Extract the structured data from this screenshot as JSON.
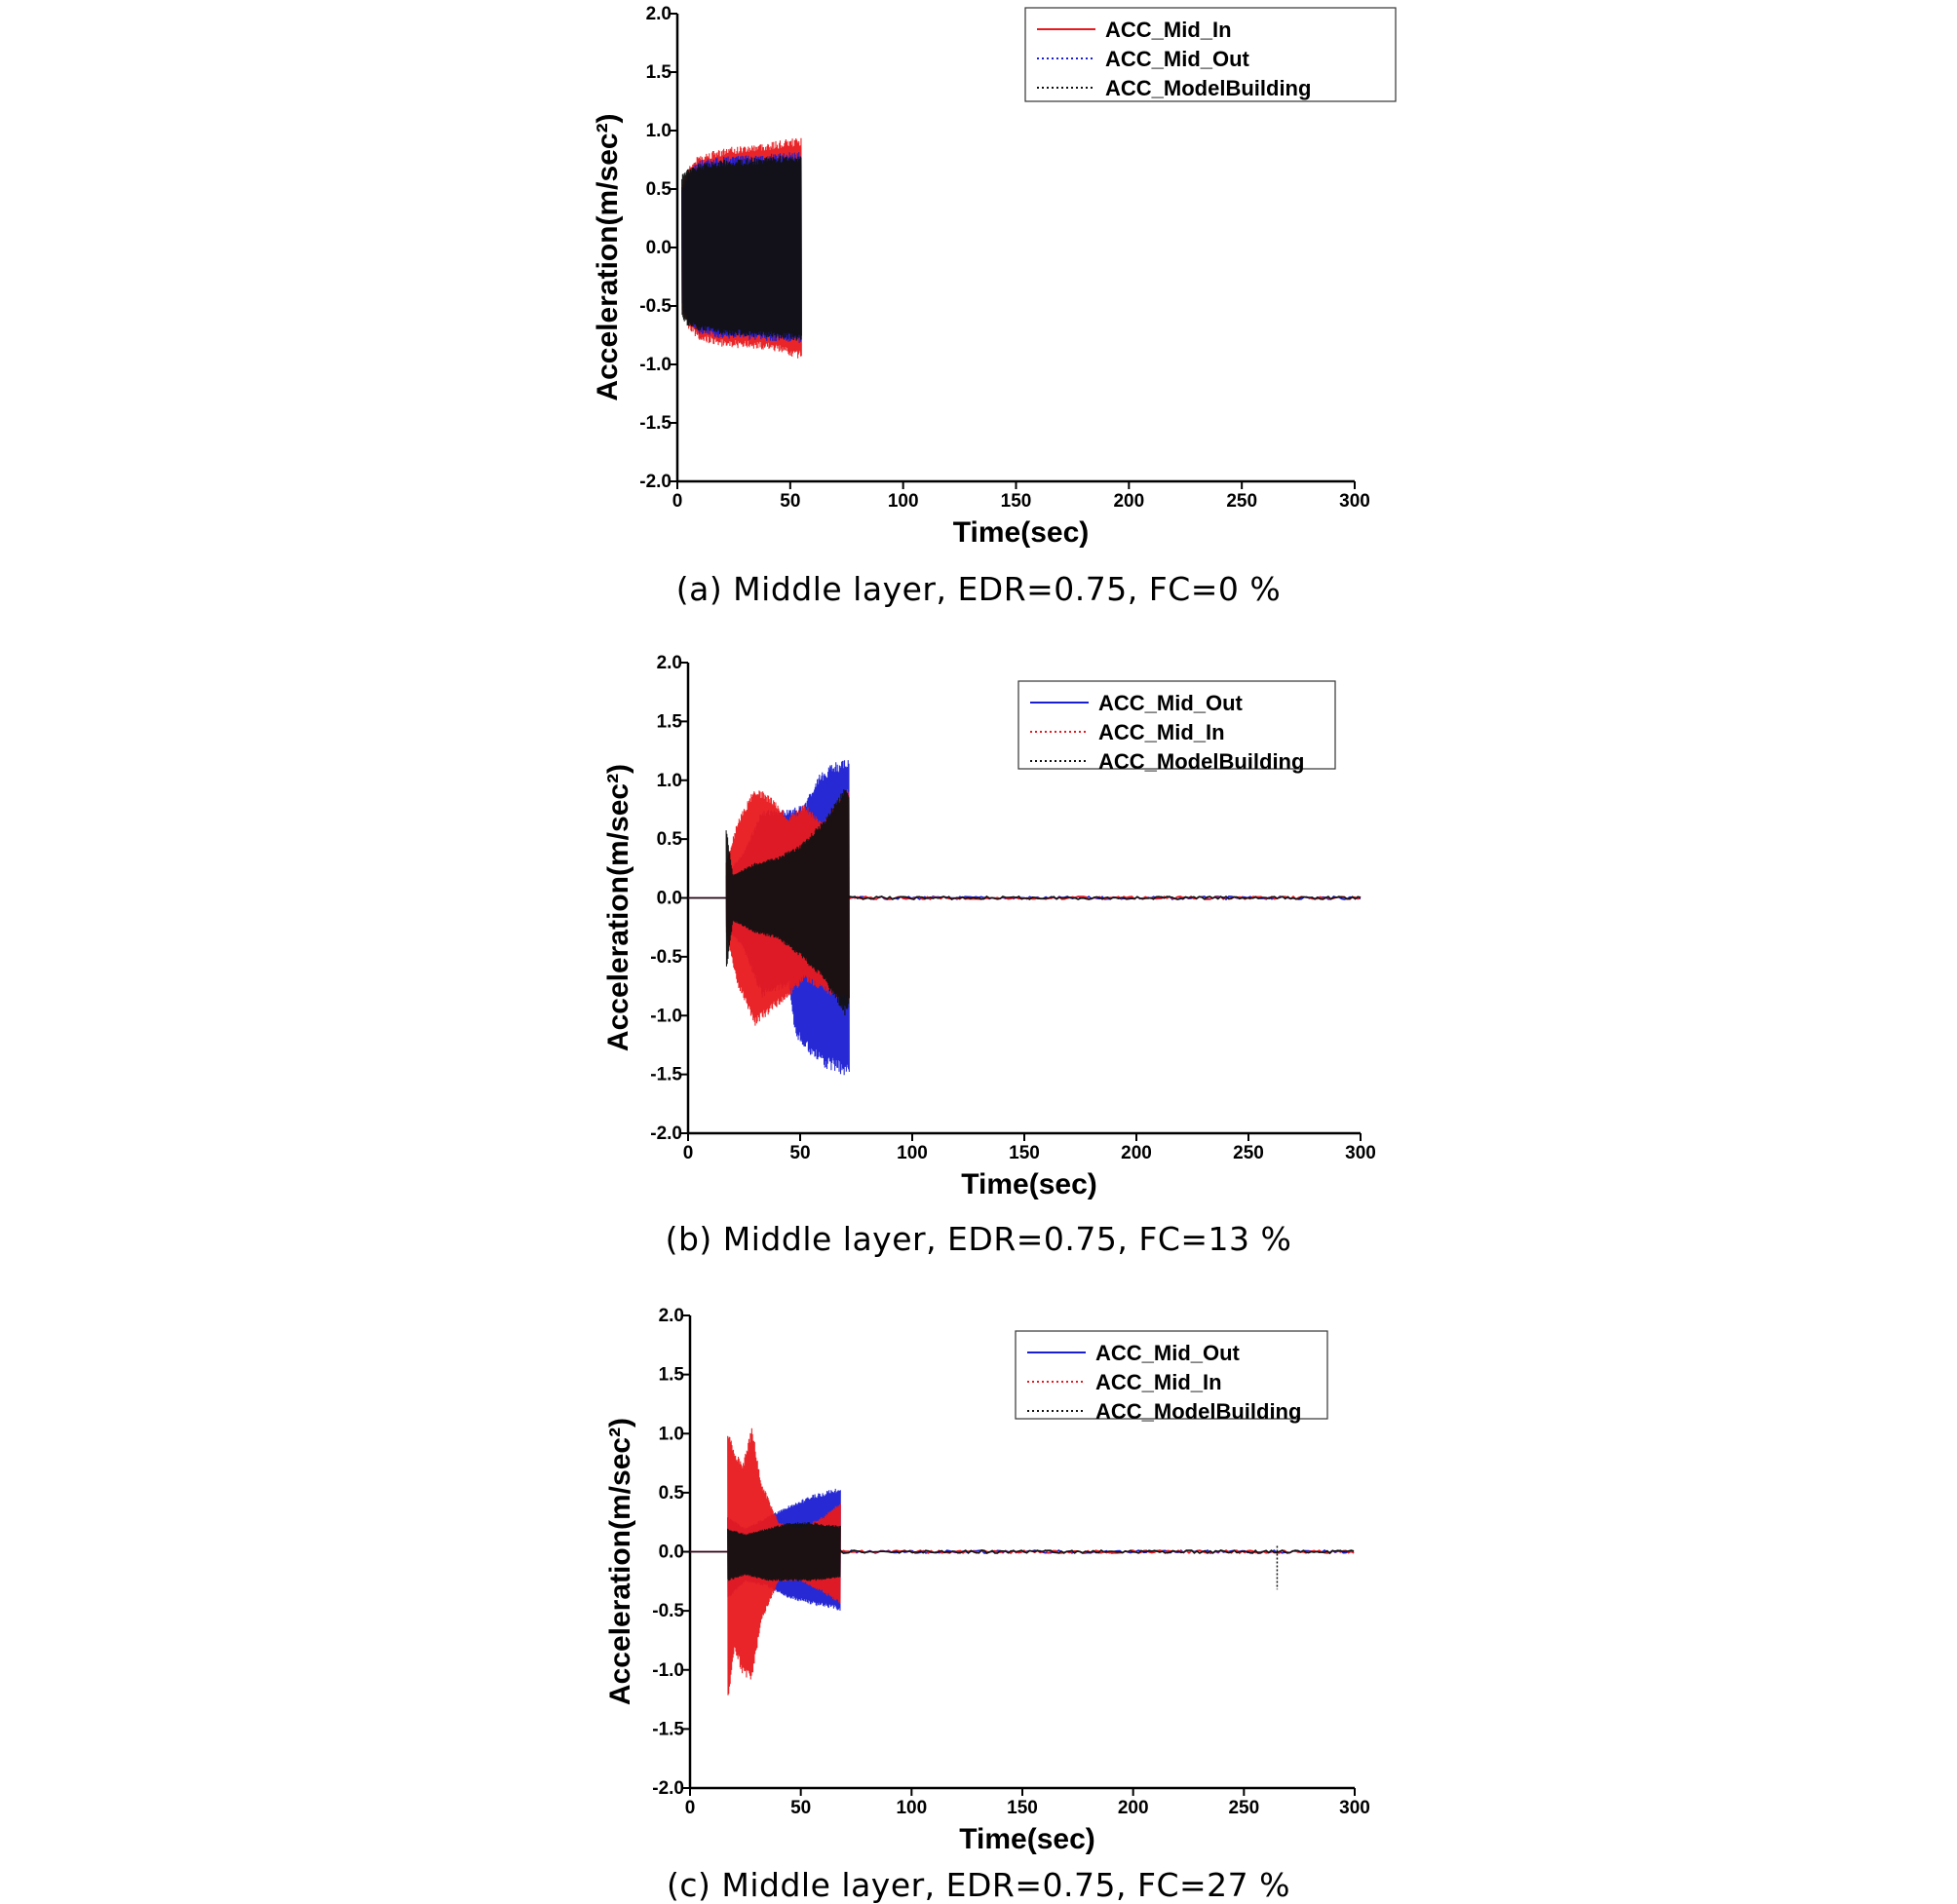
{
  "chart_data": [
    {
      "type": "line",
      "caption": "(a) Middle layer, EDR=0.75, FC=0 %",
      "xlabel": "Time(sec)",
      "ylabel": "Acceleration(m/sec²)",
      "xlim": [
        0,
        300
      ],
      "ylim": [
        -2.0,
        2.0
      ],
      "xticks": [
        "0",
        "50",
        "100",
        "150",
        "200",
        "250",
        "300"
      ],
      "yticks": [
        "2.0",
        "1.5",
        "1.0",
        "0.5",
        "0.0",
        "-0.5",
        "-1.0",
        "-1.5",
        "-2.0"
      ],
      "legend_position": "top-right",
      "series": [
        {
          "name": "ACC_Mid_In",
          "color": "#e8191e",
          "line": "solid",
          "envelope": [
            [
              2,
              0.55
            ],
            [
              5,
              0.7
            ],
            [
              10,
              0.8
            ],
            [
              20,
              0.85
            ],
            [
              40,
              0.9
            ],
            [
              53,
              0.94
            ]
          ],
          "envelope_low": [
            [
              2,
              -0.55
            ],
            [
              5,
              -0.7
            ],
            [
              10,
              -0.8
            ],
            [
              20,
              -0.85
            ],
            [
              40,
              -0.88
            ],
            [
              53,
              -0.95
            ]
          ],
          "end": 55
        },
        {
          "name": "ACC_Mid_Out",
          "color": "#1b1fd2",
          "line": "dotted",
          "envelope": [
            [
              2,
              0.5
            ],
            [
              5,
              0.65
            ],
            [
              10,
              0.75
            ],
            [
              20,
              0.78
            ],
            [
              40,
              0.8
            ],
            [
              53,
              0.82
            ]
          ],
          "envelope_low": [
            [
              2,
              -0.5
            ],
            [
              5,
              -0.65
            ],
            [
              10,
              -0.75
            ],
            [
              20,
              -0.78
            ],
            [
              40,
              -0.8
            ],
            [
              53,
              -0.82
            ]
          ],
          "end": 55
        },
        {
          "name": "ACC_ModelBuilding",
          "color": "#111111",
          "line": "dotted",
          "envelope": [
            [
              2,
              0.62
            ],
            [
              5,
              0.68
            ],
            [
              10,
              0.72
            ],
            [
              20,
              0.75
            ],
            [
              40,
              0.78
            ],
            [
              53,
              0.8
            ]
          ],
          "envelope_low": [
            [
              2,
              -0.62
            ],
            [
              5,
              -0.68
            ],
            [
              10,
              -0.72
            ],
            [
              20,
              -0.75
            ],
            [
              40,
              -0.78
            ],
            [
              53,
              -0.8
            ]
          ],
          "end": 55
        }
      ]
    },
    {
      "type": "line",
      "caption": "(b) Middle layer, EDR=0.75, FC=13 %",
      "xlabel": "Time(sec)",
      "ylabel": "Acceleration(m/sec²)",
      "xlim": [
        0,
        300
      ],
      "ylim": [
        -2.0,
        2.0
      ],
      "xticks": [
        "0",
        "50",
        "100",
        "150",
        "200",
        "250",
        "300"
      ],
      "yticks": [
        "2.0",
        "1.5",
        "1.0",
        "0.5",
        "0.0",
        "-0.5",
        "-1.0",
        "-1.5",
        "-2.0"
      ],
      "legend_position": "top-right",
      "series": [
        {
          "name": "ACC_Mid_Out",
          "color": "#1b1fd2",
          "line": "solid",
          "envelope": [
            [
              17,
              0.2
            ],
            [
              25,
              0.4
            ],
            [
              33,
              0.75
            ],
            [
              45,
              0.75
            ],
            [
              52,
              0.8
            ],
            [
              58,
              1.05
            ],
            [
              65,
              1.15
            ],
            [
              72,
              1.18
            ]
          ],
          "envelope_low": [
            [
              17,
              -0.25
            ],
            [
              25,
              -0.45
            ],
            [
              33,
              -0.85
            ],
            [
              45,
              -0.75
            ],
            [
              48,
              -1.2
            ],
            [
              53,
              -1.3
            ],
            [
              60,
              -1.45
            ],
            [
              72,
              -1.52
            ]
          ],
          "end": 72
        },
        {
          "name": "ACC_Mid_In",
          "color": "#e8191e",
          "line": "dotted",
          "envelope": [
            [
              17,
              0.3
            ],
            [
              22,
              0.65
            ],
            [
              30,
              0.95
            ],
            [
              38,
              0.85
            ],
            [
              45,
              0.7
            ],
            [
              52,
              0.8
            ],
            [
              60,
              0.65
            ],
            [
              72,
              0.95
            ]
          ],
          "envelope_low": [
            [
              17,
              -0.3
            ],
            [
              22,
              -0.75
            ],
            [
              30,
              -1.1
            ],
            [
              38,
              -0.95
            ],
            [
              45,
              -0.85
            ],
            [
              52,
              -0.7
            ],
            [
              60,
              -0.8
            ],
            [
              72,
              -0.9
            ]
          ],
          "end": 72
        },
        {
          "name": "ACC_ModelBuilding",
          "color": "#111111",
          "line": "dotted",
          "envelope": [
            [
              17,
              0.6
            ],
            [
              20,
              0.2
            ],
            [
              30,
              0.3
            ],
            [
              40,
              0.35
            ],
            [
              50,
              0.45
            ],
            [
              60,
              0.65
            ],
            [
              70,
              0.95
            ],
            [
              72,
              0.9
            ]
          ],
          "envelope_low": [
            [
              17,
              -0.65
            ],
            [
              20,
              -0.2
            ],
            [
              30,
              -0.3
            ],
            [
              40,
              -0.35
            ],
            [
              50,
              -0.5
            ],
            [
              60,
              -0.7
            ],
            [
              70,
              -1.0
            ],
            [
              72,
              -0.9
            ]
          ],
          "end": 72
        }
      ]
    },
    {
      "type": "line",
      "caption": "(c) Middle layer, EDR=0.75, FC=27 %",
      "xlabel": "Time(sec)",
      "ylabel": "Acceleration(m/sec²)",
      "xlim": [
        0,
        300
      ],
      "ylim": [
        -2.0,
        2.0
      ],
      "xticks": [
        "0",
        "50",
        "100",
        "150",
        "200",
        "250",
        "300"
      ],
      "yticks": [
        "2.0",
        "1.5",
        "1.0",
        "0.5",
        "0.0",
        "-0.5",
        "-1.0",
        "-1.5",
        "-2.0"
      ],
      "legend_position": "top-right",
      "series": [
        {
          "name": "ACC_Mid_Out",
          "color": "#1b1fd2",
          "line": "solid",
          "envelope": [
            [
              17,
              0.3
            ],
            [
              25,
              0.2
            ],
            [
              35,
              0.3
            ],
            [
              45,
              0.4
            ],
            [
              55,
              0.48
            ],
            [
              68,
              0.55
            ]
          ],
          "envelope_low": [
            [
              17,
              -0.4
            ],
            [
              25,
              -0.25
            ],
            [
              35,
              -0.3
            ],
            [
              45,
              -0.4
            ],
            [
              55,
              -0.45
            ],
            [
              68,
              -0.5
            ]
          ],
          "end": 68
        },
        {
          "name": "ACC_Mid_In",
          "color": "#e8191e",
          "line": "dotted",
          "envelope": [
            [
              17,
              1.05
            ],
            [
              20,
              0.85
            ],
            [
              24,
              0.75
            ],
            [
              28,
              1.08
            ],
            [
              32,
              0.6
            ],
            [
              40,
              0.25
            ],
            [
              50,
              0.2
            ],
            [
              60,
              0.3
            ],
            [
              68,
              0.42
            ]
          ],
          "envelope_low": [
            [
              17,
              -1.3
            ],
            [
              20,
              -0.85
            ],
            [
              24,
              -1.05
            ],
            [
              28,
              -1.1
            ],
            [
              32,
              -0.6
            ],
            [
              40,
              -0.25
            ],
            [
              50,
              -0.25
            ],
            [
              60,
              -0.35
            ],
            [
              68,
              -0.45
            ]
          ],
          "end": 68
        },
        {
          "name": "ACC_ModelBuilding",
          "color": "#111111",
          "line": "dotted",
          "envelope": [
            [
              17,
              0.2
            ],
            [
              25,
              0.15
            ],
            [
              35,
              0.2
            ],
            [
              45,
              0.25
            ],
            [
              55,
              0.25
            ],
            [
              68,
              0.22
            ]
          ],
          "envelope_low": [
            [
              17,
              -0.25
            ],
            [
              25,
              -0.2
            ],
            [
              35,
              -0.25
            ],
            [
              45,
              -0.25
            ],
            [
              55,
              -0.25
            ],
            [
              68,
              -0.22
            ]
          ],
          "end": 68,
          "spike": {
            "x": 265,
            "low": -0.32,
            "high": 0.05
          }
        }
      ]
    }
  ]
}
